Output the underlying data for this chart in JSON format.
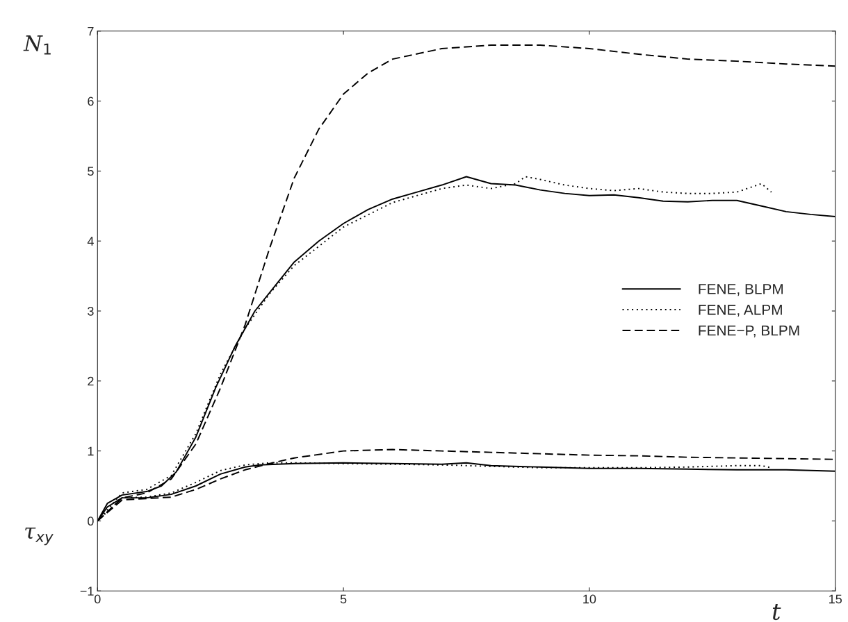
{
  "chart_data": {
    "type": "line",
    "xlabel": "t",
    "annotations": [
      "N$_{1}$",
      "τ$_{xy}$"
    ],
    "xlim": [
      0,
      15
    ],
    "xticks": [
      0,
      5,
      10,
      15
    ],
    "ylim": [
      -1,
      7
    ],
    "yticks": [
      {
        "value": -1,
        "label": "−1"
      },
      0,
      1,
      2,
      3,
      4,
      5,
      6,
      7
    ],
    "grid": false,
    "legend": "right",
    "marker": "none",
    "series": [
      {
        "name": "FENE, BLPM",
        "color": "#000000",
        "line_style": "solid",
        "x": [
          0,
          0.2,
          0.5,
          1,
          1.3,
          1.6,
          2,
          2.4,
          2.8,
          3.2,
          3.6,
          4,
          4.5,
          5,
          5.5,
          6,
          6.5,
          7,
          7.5,
          8,
          8.5,
          9,
          9.5,
          10,
          10.5,
          11,
          11.5,
          12,
          12.5,
          13,
          13.5,
          14,
          14.5,
          15
        ],
        "values": [
          0,
          0.25,
          0.37,
          0.42,
          0.5,
          0.7,
          1.2,
          1.9,
          2.5,
          3.0,
          3.35,
          3.7,
          4.0,
          4.25,
          4.45,
          4.6,
          4.7,
          4.8,
          4.92,
          4.82,
          4.8,
          4.73,
          4.68,
          4.65,
          4.66,
          4.62,
          4.57,
          4.56,
          4.58,
          4.58,
          4.5,
          4.42,
          4.38,
          4.35
        ]
      },
      {
        "name": "FENE, ALPM",
        "color": "#000000",
        "line_style": "dotted",
        "x": [
          0,
          0.5,
          1,
          1.5,
          2,
          2.5,
          3,
          3.5,
          4,
          5,
          6,
          7,
          7.5,
          8,
          8.5,
          8.7,
          9,
          9.5,
          10,
          10.5,
          11,
          11.5,
          12,
          12.5,
          13,
          13.5,
          13.7
        ],
        "values": [
          0,
          0.4,
          0.45,
          0.65,
          1.25,
          2.1,
          2.75,
          3.25,
          3.65,
          4.2,
          4.55,
          4.75,
          4.8,
          4.75,
          4.82,
          4.92,
          4.88,
          4.8,
          4.75,
          4.72,
          4.75,
          4.7,
          4.68,
          4.68,
          4.7,
          4.82,
          4.7
        ]
      },
      {
        "name": "FENE−P, BLPM",
        "color": "#000000",
        "line_style": "dashed",
        "x": [
          0,
          0.5,
          1,
          1.5,
          2,
          2.5,
          3,
          3.5,
          4,
          4.5,
          5,
          5.5,
          6,
          7,
          8,
          9,
          10,
          11,
          12,
          13,
          14,
          15
        ],
        "values": [
          0,
          0.33,
          0.4,
          0.6,
          1.1,
          1.9,
          2.8,
          3.9,
          4.9,
          5.6,
          6.1,
          6.4,
          6.6,
          6.75,
          6.8,
          6.8,
          6.75,
          6.67,
          6.6,
          6.57,
          6.53,
          6.5
        ]
      },
      {
        "color": "#000000",
        "line_style": "solid",
        "x": [
          0,
          0.2,
          0.5,
          1,
          1.5,
          2,
          2.5,
          3,
          3.3,
          4,
          5,
          6,
          7,
          7.5,
          8,
          9,
          10,
          11,
          12,
          13,
          14,
          15
        ],
        "values": [
          0,
          0.2,
          0.33,
          0.33,
          0.38,
          0.5,
          0.67,
          0.77,
          0.8,
          0.82,
          0.83,
          0.82,
          0.81,
          0.83,
          0.79,
          0.77,
          0.75,
          0.75,
          0.74,
          0.73,
          0.73,
          0.71
        ]
      },
      {
        "color": "#000000",
        "line_style": "dotted",
        "x": [
          0,
          0.5,
          1,
          1.5,
          2,
          2.5,
          3,
          3.5,
          4,
          5,
          6,
          7,
          8,
          9,
          10,
          11,
          12,
          13,
          13.5,
          13.7
        ],
        "values": [
          0,
          0.33,
          0.34,
          0.4,
          0.55,
          0.72,
          0.8,
          0.83,
          0.83,
          0.82,
          0.81,
          0.8,
          0.78,
          0.76,
          0.76,
          0.76,
          0.77,
          0.79,
          0.79,
          0.76
        ]
      },
      {
        "color": "#000000",
        "line_style": "dashed",
        "x": [
          0,
          0.5,
          1,
          1.5,
          2,
          2.5,
          3,
          3.5,
          4,
          5,
          6,
          7,
          8,
          9,
          10,
          11,
          12,
          13,
          14,
          15
        ],
        "values": [
          0,
          0.3,
          0.32,
          0.34,
          0.45,
          0.6,
          0.73,
          0.82,
          0.9,
          1.0,
          1.02,
          1.0,
          0.98,
          0.96,
          0.94,
          0.93,
          0.91,
          0.9,
          0.89,
          0.88
        ]
      }
    ]
  }
}
